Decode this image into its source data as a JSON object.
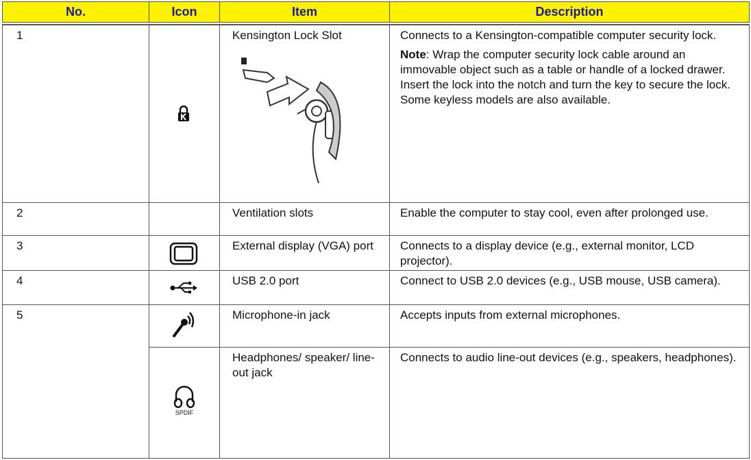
{
  "table": {
    "headers": [
      "No.",
      "Icon",
      "Item",
      "Description"
    ],
    "rows": [
      {
        "no": "1",
        "item": "Kensington Lock Slot",
        "description": "Connects to a Kensington-compatible computer security lock.",
        "note_label": "Note",
        "note": ": Wrap the computer security lock cable around an immovable object such as a table or handle of a locked drawer. Insert the lock into the notch and turn the key to secure the lock. Some keyless models are also available."
      },
      {
        "no": "2",
        "item": "Ventilation slots",
        "description": "Enable the computer to stay cool, even after prolonged use."
      },
      {
        "no": "3",
        "item": "External display (VGA) port",
        "description": "Connects to a display device (e.g., external monitor, LCD projector)."
      },
      {
        "no": "4",
        "item": "USB 2.0 port",
        "description": "Connect to USB 2.0 devices (e.g., USB mouse, USB camera)."
      },
      {
        "no": "5",
        "item": "Microphone-in jack",
        "description": "Accepts inputs from external microphones."
      },
      {
        "item": "Headphones/ speaker/ line-out jack",
        "icon_label": "SPDIF",
        "description": "Connects to audio line-out devices (e.g., speakers, headphones)."
      }
    ]
  }
}
